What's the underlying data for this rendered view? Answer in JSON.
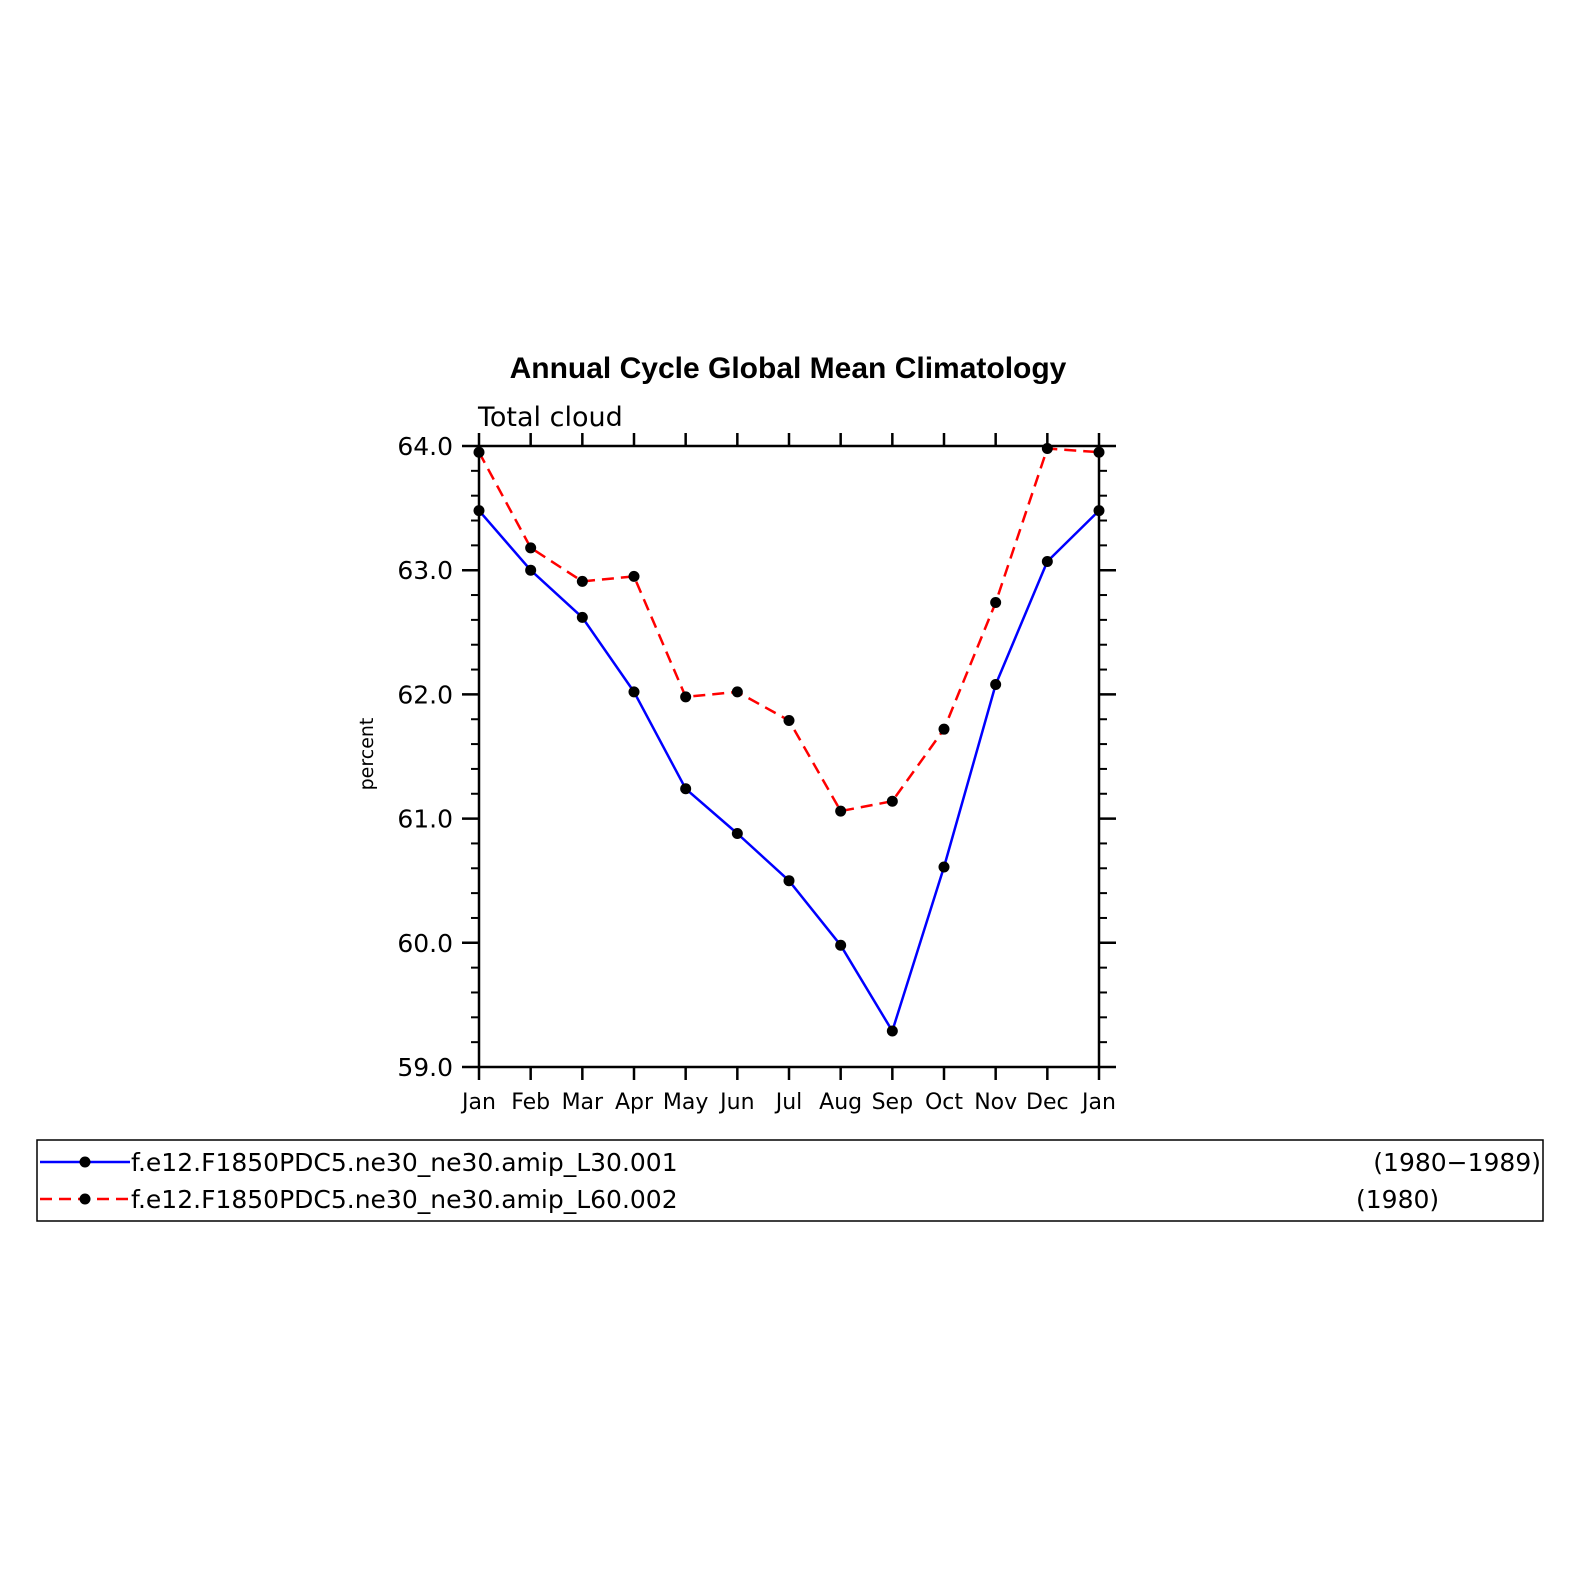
{
  "chart_data": {
    "type": "line",
    "title": "Annual Cycle Global Mean Climatology",
    "subtitle": "Total cloud",
    "xlabel": "",
    "ylabel": "percent",
    "ylim": [
      59.0,
      64.0
    ],
    "y_ticks": [
      "59.0",
      "60.0",
      "61.0",
      "62.0",
      "63.0",
      "64.0"
    ],
    "categories": [
      "Jan",
      "Feb",
      "Mar",
      "Apr",
      "May",
      "Jun",
      "Jul",
      "Aug",
      "Sep",
      "Oct",
      "Nov",
      "Dec",
      "Jan"
    ],
    "grid": false,
    "legend_position": "bottom",
    "series": [
      {
        "name": "f.e12.F1850PDC5.ne30_ne30.amip_L30.001",
        "period": "(1980−1989)",
        "color": "#0000ff",
        "dash": "solid",
        "values": [
          63.48,
          63.0,
          62.62,
          62.02,
          61.24,
          60.88,
          60.5,
          59.98,
          59.29,
          60.61,
          62.08,
          63.07,
          63.48
        ]
      },
      {
        "name": "f.e12.F1850PDC5.ne30_ne30.amip_L60.002",
        "period": "(1980)",
        "color": "#ff0000",
        "dash": "dashed",
        "values": [
          63.95,
          63.18,
          62.91,
          62.95,
          61.98,
          62.02,
          61.79,
          61.06,
          61.14,
          61.72,
          62.74,
          63.98,
          63.95
        ]
      }
    ]
  }
}
